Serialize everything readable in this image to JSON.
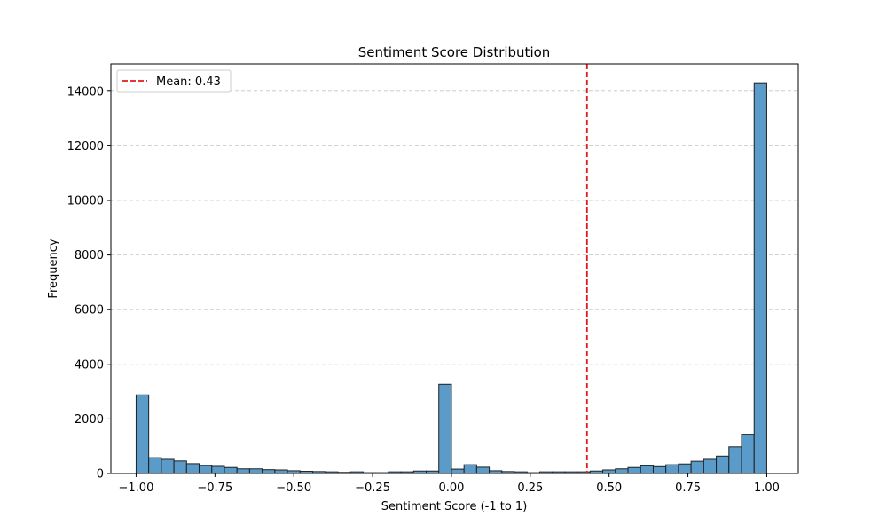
{
  "chart_data": {
    "type": "bar",
    "title": "Sentiment Score Distribution",
    "xlabel": "Sentiment Score (-1 to 1)",
    "ylabel": "Frequency",
    "xlim": [
      -1.08,
      1.1
    ],
    "ylim": [
      0,
      15000
    ],
    "bin_start": -1.0,
    "bin_width": 0.04,
    "values": [
      2880,
      580,
      520,
      460,
      360,
      290,
      260,
      220,
      170,
      170,
      140,
      130,
      100,
      80,
      70,
      60,
      40,
      60,
      30,
      30,
      60,
      60,
      90,
      90,
      3270,
      160,
      320,
      230,
      100,
      70,
      60,
      30,
      60,
      60,
      60,
      60,
      90,
      130,
      170,
      220,
      280,
      250,
      320,
      350,
      450,
      520,
      640,
      980,
      1420,
      14280
    ],
    "x_ticks": [
      -1.0,
      -0.75,
      -0.5,
      -0.25,
      0.0,
      0.25,
      0.5,
      0.75,
      1.0
    ],
    "x_tick_labels": [
      "−1.00",
      "−0.75",
      "−0.50",
      "−0.25",
      "0.00",
      "0.25",
      "0.50",
      "0.75",
      "1.00"
    ],
    "y_ticks": [
      0,
      2000,
      4000,
      6000,
      8000,
      10000,
      12000,
      14000
    ],
    "y_tick_labels": [
      "0",
      "2000",
      "4000",
      "6000",
      "8000",
      "10000",
      "12000",
      "14000"
    ],
    "mean_line": {
      "x": 0.43,
      "label": "Mean: 0.43",
      "color": "#e31a1c"
    },
    "bar_color": "#5b9bc9",
    "bar_edge_color": "#1f1f1f",
    "grid": "y-dashed",
    "legend_position": "top-left"
  }
}
